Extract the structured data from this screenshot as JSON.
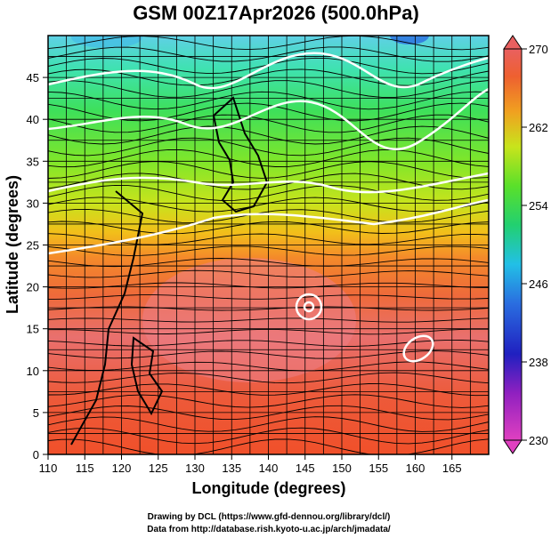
{
  "chart_data": {
    "type": "heatmap",
    "title": "GSM 00Z17Apr2026 (500.0hPa)",
    "xlabel": "Longitude (degrees)",
    "ylabel": "Latitude  (degrees)",
    "xlim": [
      110,
      170
    ],
    "ylim": [
      0,
      50
    ],
    "xticks": [
      "110",
      "115",
      "120",
      "125",
      "130",
      "135",
      "140",
      "145",
      "150",
      "155",
      "160",
      "165"
    ],
    "yticks": [
      "0",
      "5",
      "10",
      "15",
      "20",
      "25",
      "30",
      "35",
      "40",
      "45"
    ],
    "colorbar": {
      "min": 230,
      "max": 270,
      "ticks": [
        "230",
        "238",
        "246",
        "254",
        "262",
        "270"
      ]
    },
    "temperature_field_K": {
      "description_rows_by_latitude": [
        {
          "lat": 50,
          "value": 245
        },
        {
          "lat": 45,
          "value": 249
        },
        {
          "lat": 40,
          "value": 252
        },
        {
          "lat": 35,
          "value": 256
        },
        {
          "lat": 30,
          "value": 260
        },
        {
          "lat": 25,
          "value": 263
        },
        {
          "lat": 20,
          "value": 266
        },
        {
          "lat": 15,
          "value": 265
        },
        {
          "lat": 10,
          "value": 265
        },
        {
          "lat": 5,
          "value": 264
        },
        {
          "lat": 0,
          "value": 264
        }
      ]
    },
    "grid": true
  },
  "credits": {
    "line1": "Drawing by DCL (https://www.gfd-dennou.org/library/dcl/)",
    "line2": "Data from http://database.rish.kyoto-u.ac.jp/arch/jmadata/"
  }
}
